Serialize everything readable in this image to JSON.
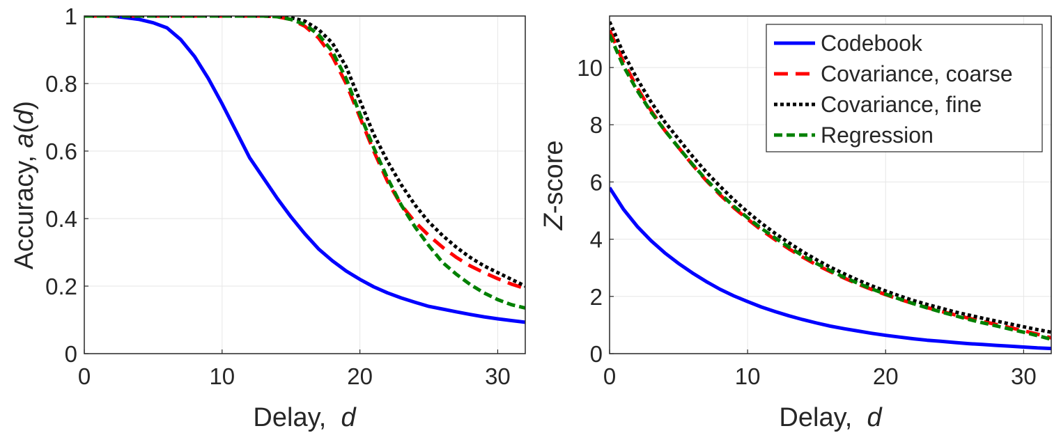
{
  "chart_data": [
    {
      "type": "line",
      "title": "",
      "xlabel_prefix": "Delay,  ",
      "xlabel_var": "d",
      "ylabel_prefix": "Accuracy, ",
      "ylabel_var": "a",
      "ylabel_open": "(",
      "ylabel_arg": "d",
      "ylabel_close": ")",
      "xlim": [
        0,
        32
      ],
      "ylim": [
        0,
        1
      ],
      "xticks": [
        0,
        10,
        20,
        30
      ],
      "xtick_labels": [
        "0",
        "10",
        "20",
        "30"
      ],
      "yticks": [
        0,
        0.2,
        0.4,
        0.6,
        0.8,
        1
      ],
      "ytick_labels": [
        "0",
        "0.2",
        "0.4",
        "0.6",
        "0.8",
        "1"
      ],
      "grid": true,
      "x": [
        0,
        1,
        2,
        3,
        4,
        5,
        6,
        7,
        8,
        9,
        10,
        11,
        12,
        13,
        14,
        15,
        16,
        17,
        18,
        19,
        20,
        21,
        22,
        23,
        24,
        25,
        26,
        27,
        28,
        29,
        30,
        31,
        32
      ],
      "series": [
        {
          "name": "Codebook",
          "color": "#0000ff",
          "style": "solid",
          "values": [
            1.0,
            1.0,
            1.0,
            0.995,
            0.99,
            0.98,
            0.965,
            0.93,
            0.88,
            0.815,
            0.74,
            0.66,
            0.58,
            0.52,
            0.46,
            0.405,
            0.355,
            0.31,
            0.275,
            0.245,
            0.22,
            0.198,
            0.18,
            0.165,
            0.152,
            0.14,
            0.132,
            0.124,
            0.116,
            0.109,
            0.103,
            0.098,
            0.093
          ]
        },
        {
          "name": "Covariance, coarse",
          "color": "#ff0000",
          "style": "dashed",
          "values": [
            1.0,
            1.0,
            1.0,
            1.0,
            1.0,
            1.0,
            1.0,
            1.0,
            1.0,
            1.0,
            1.0,
            1.0,
            1.0,
            1.0,
            0.998,
            0.99,
            0.97,
            0.935,
            0.88,
            0.8,
            0.7,
            0.6,
            0.51,
            0.44,
            0.39,
            0.35,
            0.315,
            0.285,
            0.26,
            0.24,
            0.222,
            0.206,
            0.193
          ]
        },
        {
          "name": "Covariance, fine",
          "color": "#000000",
          "style": "dotted",
          "values": [
            1.0,
            1.0,
            1.0,
            1.0,
            1.0,
            1.0,
            1.0,
            1.0,
            1.0,
            1.0,
            1.0,
            1.0,
            1.0,
            1.0,
            1.0,
            0.995,
            0.985,
            0.96,
            0.92,
            0.85,
            0.75,
            0.65,
            0.57,
            0.5,
            0.44,
            0.39,
            0.35,
            0.315,
            0.285,
            0.26,
            0.24,
            0.22,
            0.2
          ]
        },
        {
          "name": "Regression",
          "color": "#008000",
          "style": "dashed",
          "values": [
            1.0,
            1.0,
            1.0,
            1.0,
            1.0,
            1.0,
            1.0,
            1.0,
            1.0,
            1.0,
            1.0,
            1.0,
            1.0,
            1.0,
            0.998,
            0.99,
            0.975,
            0.945,
            0.895,
            0.815,
            0.71,
            0.61,
            0.52,
            0.44,
            0.375,
            0.32,
            0.27,
            0.235,
            0.205,
            0.18,
            0.16,
            0.145,
            0.135
          ]
        }
      ]
    },
    {
      "type": "line",
      "title": "",
      "xlabel_prefix": "Delay,  ",
      "xlabel_var": "d",
      "ylabel_var": "Z",
      "ylabel_suffix": "-score",
      "xlim": [
        0,
        32
      ],
      "ylim": [
        0,
        11.8
      ],
      "xticks": [
        0,
        10,
        20,
        30
      ],
      "xtick_labels": [
        "0",
        "10",
        "20",
        "30"
      ],
      "yticks": [
        0,
        2,
        4,
        6,
        8,
        10
      ],
      "ytick_labels": [
        "0",
        "2",
        "4",
        "6",
        "8",
        "10"
      ],
      "grid": true,
      "legend_position": "top-right",
      "x": [
        0,
        1,
        2,
        3,
        4,
        5,
        6,
        7,
        8,
        9,
        10,
        11,
        12,
        13,
        14,
        15,
        16,
        17,
        18,
        19,
        20,
        21,
        22,
        23,
        24,
        25,
        26,
        27,
        28,
        29,
        30,
        31,
        32
      ],
      "series": [
        {
          "name": "Codebook",
          "color": "#0000ff",
          "style": "solid",
          "values": [
            5.8,
            5.05,
            4.45,
            3.95,
            3.52,
            3.15,
            2.82,
            2.52,
            2.25,
            2.02,
            1.82,
            1.63,
            1.47,
            1.32,
            1.19,
            1.07,
            0.96,
            0.87,
            0.79,
            0.71,
            0.64,
            0.58,
            0.52,
            0.47,
            0.43,
            0.39,
            0.35,
            0.32,
            0.29,
            0.26,
            0.23,
            0.2,
            0.18
          ]
        },
        {
          "name": "Covariance, coarse",
          "color": "#ff0000",
          "style": "dashed",
          "values": [
            11.3,
            10.2,
            9.3,
            8.5,
            7.8,
            7.2,
            6.6,
            6.05,
            5.55,
            5.1,
            4.7,
            4.32,
            3.98,
            3.66,
            3.37,
            3.1,
            2.86,
            2.64,
            2.43,
            2.24,
            2.06,
            1.9,
            1.75,
            1.61,
            1.48,
            1.36,
            1.24,
            1.13,
            1.02,
            0.91,
            0.8,
            0.68,
            0.55
          ]
        },
        {
          "name": "Covariance, fine",
          "color": "#000000",
          "style": "dotted",
          "values": [
            11.6,
            10.5,
            9.6,
            8.8,
            8.1,
            7.5,
            6.9,
            6.35,
            5.85,
            5.38,
            4.95,
            4.56,
            4.2,
            3.87,
            3.56,
            3.28,
            3.02,
            2.79,
            2.57,
            2.37,
            2.19,
            2.02,
            1.86,
            1.72,
            1.59,
            1.46,
            1.35,
            1.24,
            1.14,
            1.04,
            0.94,
            0.84,
            0.75
          ]
        },
        {
          "name": "Regression",
          "color": "#008000",
          "style": "dashed",
          "values": [
            11.15,
            10.05,
            9.2,
            8.45,
            7.8,
            7.2,
            6.62,
            6.08,
            5.6,
            5.15,
            4.75,
            4.38,
            4.04,
            3.72,
            3.42,
            3.15,
            2.9,
            2.67,
            2.46,
            2.26,
            2.08,
            1.91,
            1.75,
            1.6,
            1.46,
            1.33,
            1.2,
            1.08,
            0.97,
            0.86,
            0.75,
            0.63,
            0.5
          ]
        }
      ]
    }
  ]
}
